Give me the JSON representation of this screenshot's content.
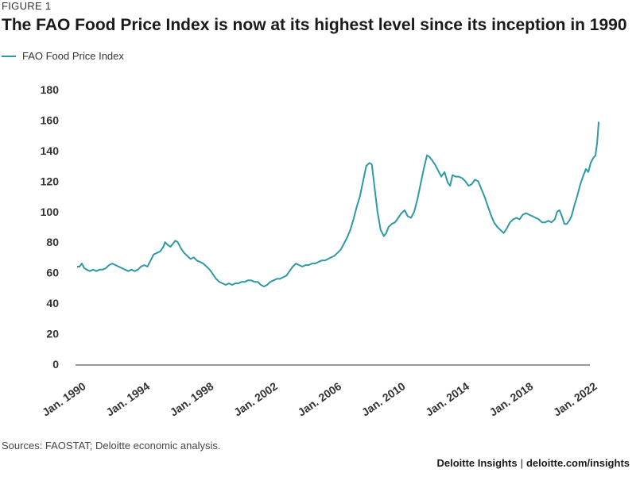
{
  "figure_label": "FIGURE 1",
  "title": "The FAO Food Price Index is now at its highest level since its inception in 1990",
  "source": "Sources: FAOSTAT; Deloitte economic analysis.",
  "footer": {
    "brand": "Deloitte Insights",
    "separator": "|",
    "url": "deloitte.com/insights"
  },
  "colors": {
    "line": "#2e9aa3",
    "axis": "#333333",
    "text": "#1a1a1a"
  },
  "chart_data": {
    "type": "line",
    "title": "The FAO Food Price Index is now at its highest level since its inception in 1990",
    "xlabel": "",
    "ylabel": "",
    "ylim": [
      0,
      180
    ],
    "xlim": [
      1990,
      2022
    ],
    "yticks": [
      "0",
      "20",
      "40",
      "60",
      "80",
      "100",
      "120",
      "140",
      "160",
      "180"
    ],
    "xticks": [
      {
        "label": "Jan. 1990",
        "x": 1990
      },
      {
        "label": "Jan. 1994",
        "x": 1994
      },
      {
        "label": "Jan. 1998",
        "x": 1998
      },
      {
        "label": "Jan. 2002",
        "x": 2002
      },
      {
        "label": "Jan. 2006",
        "x": 2006
      },
      {
        "label": "Jan. 2010",
        "x": 2010
      },
      {
        "label": "Jan. 2014",
        "x": 2014
      },
      {
        "label": "Jan. 2018",
        "x": 2018
      },
      {
        "label": "Jan. 2022",
        "x": 2022
      }
    ],
    "grid": false,
    "legend": "top-left",
    "series": [
      {
        "name": "FAO Food Price Index",
        "points": [
          [
            1990.0,
            64
          ],
          [
            1990.15,
            64
          ],
          [
            1990.3,
            66
          ],
          [
            1990.45,
            63
          ],
          [
            1990.6,
            62
          ],
          [
            1990.8,
            61
          ],
          [
            1991.0,
            62
          ],
          [
            1991.2,
            61
          ],
          [
            1991.4,
            62
          ],
          [
            1991.6,
            62
          ],
          [
            1991.8,
            63
          ],
          [
            1992.0,
            65
          ],
          [
            1992.2,
            66
          ],
          [
            1992.4,
            65
          ],
          [
            1992.6,
            64
          ],
          [
            1992.8,
            63
          ],
          [
            1993.0,
            62
          ],
          [
            1993.2,
            61
          ],
          [
            1993.4,
            62
          ],
          [
            1993.6,
            61
          ],
          [
            1993.8,
            62
          ],
          [
            1994.0,
            64
          ],
          [
            1994.2,
            65
          ],
          [
            1994.4,
            64
          ],
          [
            1994.6,
            68
          ],
          [
            1994.8,
            72
          ],
          [
            1995.0,
            73
          ],
          [
            1995.2,
            74
          ],
          [
            1995.4,
            77
          ],
          [
            1995.5,
            80
          ],
          [
            1995.7,
            78
          ],
          [
            1995.85,
            77
          ],
          [
            1996.0,
            79
          ],
          [
            1996.15,
            81
          ],
          [
            1996.3,
            80
          ],
          [
            1996.5,
            76
          ],
          [
            1996.7,
            73
          ],
          [
            1996.9,
            71
          ],
          [
            1997.1,
            69
          ],
          [
            1997.3,
            70
          ],
          [
            1997.5,
            68
          ],
          [
            1997.7,
            67
          ],
          [
            1997.9,
            66
          ],
          [
            1998.1,
            64
          ],
          [
            1998.3,
            62
          ],
          [
            1998.5,
            59
          ],
          [
            1998.7,
            56
          ],
          [
            1998.9,
            54
          ],
          [
            1999.1,
            53
          ],
          [
            1999.3,
            52
          ],
          [
            1999.5,
            53
          ],
          [
            1999.7,
            52
          ],
          [
            1999.9,
            53
          ],
          [
            2000.1,
            53
          ],
          [
            2000.3,
            54
          ],
          [
            2000.5,
            54
          ],
          [
            2000.7,
            55
          ],
          [
            2000.9,
            55
          ],
          [
            2001.1,
            54
          ],
          [
            2001.3,
            54
          ],
          [
            2001.5,
            52
          ],
          [
            2001.7,
            51
          ],
          [
            2001.9,
            52
          ],
          [
            2002.1,
            54
          ],
          [
            2002.3,
            55
          ],
          [
            2002.5,
            56
          ],
          [
            2002.7,
            56
          ],
          [
            2002.9,
            57
          ],
          [
            2003.1,
            58
          ],
          [
            2003.3,
            61
          ],
          [
            2003.5,
            64
          ],
          [
            2003.7,
            66
          ],
          [
            2003.9,
            65
          ],
          [
            2004.1,
            64
          ],
          [
            2004.3,
            65
          ],
          [
            2004.5,
            65
          ],
          [
            2004.7,
            66
          ],
          [
            2004.9,
            66
          ],
          [
            2005.1,
            67
          ],
          [
            2005.3,
            68
          ],
          [
            2005.5,
            68
          ],
          [
            2005.7,
            69
          ],
          [
            2005.9,
            70
          ],
          [
            2006.1,
            71
          ],
          [
            2006.3,
            73
          ],
          [
            2006.5,
            75
          ],
          [
            2006.7,
            79
          ],
          [
            2006.9,
            83
          ],
          [
            2007.1,
            88
          ],
          [
            2007.3,
            95
          ],
          [
            2007.5,
            103
          ],
          [
            2007.7,
            110
          ],
          [
            2007.9,
            120
          ],
          [
            2008.1,
            130
          ],
          [
            2008.3,
            132
          ],
          [
            2008.45,
            131
          ],
          [
            2008.6,
            118
          ],
          [
            2008.8,
            100
          ],
          [
            2009.0,
            88
          ],
          [
            2009.2,
            84
          ],
          [
            2009.35,
            86
          ],
          [
            2009.5,
            90
          ],
          [
            2009.7,
            92
          ],
          [
            2009.9,
            93
          ],
          [
            2010.1,
            96
          ],
          [
            2010.3,
            99
          ],
          [
            2010.5,
            101
          ],
          [
            2010.7,
            97
          ],
          [
            2010.9,
            96
          ],
          [
            2011.1,
            100
          ],
          [
            2011.3,
            108
          ],
          [
            2011.5,
            118
          ],
          [
            2011.7,
            128
          ],
          [
            2011.9,
            137
          ],
          [
            2012.05,
            136
          ],
          [
            2012.2,
            134
          ],
          [
            2012.4,
            131
          ],
          [
            2012.6,
            127
          ],
          [
            2012.8,
            123
          ],
          [
            2013.0,
            126
          ],
          [
            2013.2,
            119
          ],
          [
            2013.35,
            117
          ],
          [
            2013.5,
            124
          ],
          [
            2013.7,
            123
          ],
          [
            2013.9,
            123
          ],
          [
            2014.1,
            122
          ],
          [
            2014.3,
            120
          ],
          [
            2014.5,
            117
          ],
          [
            2014.7,
            118
          ],
          [
            2014.9,
            121
          ],
          [
            2015.1,
            120
          ],
          [
            2015.3,
            115
          ],
          [
            2015.5,
            110
          ],
          [
            2015.7,
            104
          ],
          [
            2015.9,
            98
          ],
          [
            2016.1,
            93
          ],
          [
            2016.3,
            90
          ],
          [
            2016.5,
            88
          ],
          [
            2016.7,
            86
          ],
          [
            2016.9,
            89
          ],
          [
            2017.1,
            93
          ],
          [
            2017.3,
            95
          ],
          [
            2017.5,
            96
          ],
          [
            2017.7,
            95
          ],
          [
            2017.9,
            98
          ],
          [
            2018.1,
            99
          ],
          [
            2018.3,
            98
          ],
          [
            2018.5,
            97
          ],
          [
            2018.7,
            96
          ],
          [
            2018.9,
            95
          ],
          [
            2019.1,
            93
          ],
          [
            2019.3,
            93
          ],
          [
            2019.5,
            94
          ],
          [
            2019.7,
            93
          ],
          [
            2019.9,
            95
          ],
          [
            2020.05,
            100
          ],
          [
            2020.2,
            101
          ],
          [
            2020.35,
            97
          ],
          [
            2020.5,
            92
          ],
          [
            2020.65,
            92
          ],
          [
            2020.8,
            94
          ],
          [
            2020.95,
            97
          ],
          [
            2021.1,
            103
          ],
          [
            2021.3,
            110
          ],
          [
            2021.5,
            118
          ],
          [
            2021.7,
            124
          ],
          [
            2021.85,
            128
          ],
          [
            2022.0,
            126
          ],
          [
            2022.15,
            132
          ],
          [
            2022.3,
            135
          ],
          [
            2022.45,
            137
          ],
          [
            2022.55,
            145
          ],
          [
            2022.65,
            159
          ]
        ]
      }
    ]
  }
}
